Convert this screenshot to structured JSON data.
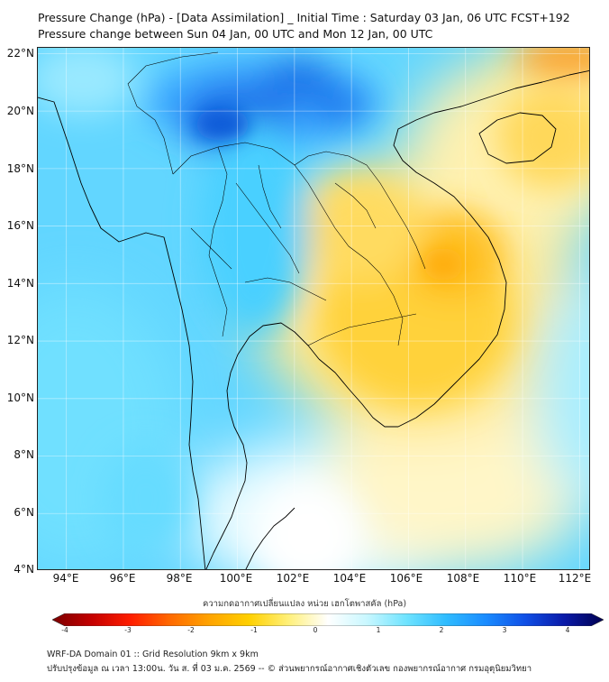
{
  "header": {
    "title_line1": "Pressure Change (hPa) - [Data Assimilation] _ Initial Time : Saturday 03 Jan, 06 UTC FCST+192",
    "title_line2": "Pressure change between Sun 04 Jan, 00 UTC and Mon 12 Jan, 00 UTC"
  },
  "map": {
    "lat_labels": [
      "22°N",
      "20°N",
      "18°N",
      "16°N",
      "14°N",
      "12°N",
      "10°N",
      "8°N",
      "6°N",
      "4°N"
    ],
    "lon_labels": [
      "94°E",
      "96°E",
      "98°E",
      "100°E",
      "102°E",
      "104°E",
      "106°E",
      "108°E",
      "110°E",
      "112°E"
    ],
    "lat_values": [
      22,
      20,
      18,
      16,
      14,
      12,
      10,
      8,
      6,
      4
    ],
    "lon_values": [
      94,
      96,
      98,
      100,
      102,
      104,
      106,
      108,
      110,
      112
    ],
    "lon_range": [
      93,
      112.4
    ],
    "lat_range": [
      4,
      22.2
    ],
    "icons": [
      "coastline-icon",
      "boundary-icon"
    ]
  },
  "colorbar": {
    "label": "ความกดอากาศเปลี่ยนแปลง หน่วย เฮกโตพาสคัล (hPa)",
    "ticks": [
      "-4",
      "-3",
      "-2",
      "-1",
      "0",
      "1",
      "2",
      "3",
      "4"
    ],
    "range": [
      -4,
      4
    ],
    "colors": [
      "#7a0000",
      "#c40000",
      "#ff1e00",
      "#ff6a00",
      "#ffa400",
      "#ffd000",
      "#fff07a",
      "#ffffff",
      "#c8f7ff",
      "#6ee3ff",
      "#2fbcff",
      "#1a8cff",
      "#1050e6",
      "#0a1aa8",
      "#000050"
    ]
  },
  "footer": {
    "line1": "WRF-DA Domain 01 :: Grid Resolution 9km x 9km",
    "line2": "ปรับปรุงข้อมูล ณ เวลา 13:00น. วัน ส. ที่ 03 ม.ค. 2569 -- © ส่วนพยากรณ์อากาศเชิงตัวเลข กองพยากรณ์อากาศ กรมอุตุนิยมวิทยา"
  }
}
